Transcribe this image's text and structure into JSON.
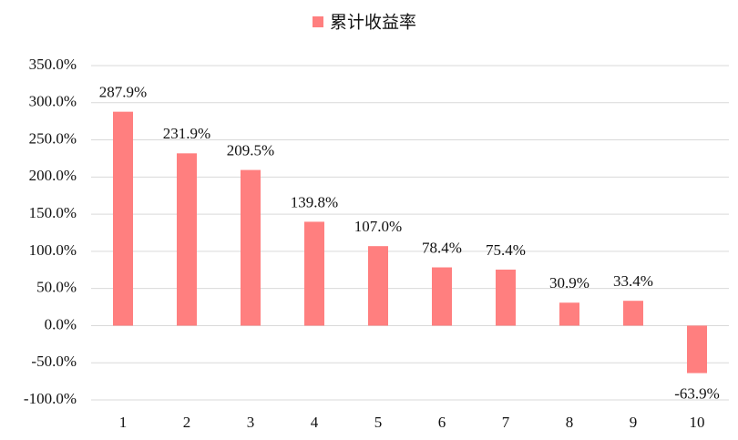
{
  "chart_data": {
    "type": "bar",
    "categories": [
      "1",
      "2",
      "3",
      "4",
      "5",
      "6",
      "7",
      "8",
      "9",
      "10"
    ],
    "series": [
      {
        "name": "累计收益率",
        "color": "#ff7f7f",
        "values": [
          287.9,
          231.9,
          209.5,
          139.8,
          107.0,
          78.4,
          75.4,
          30.9,
          33.4,
          -63.9
        ],
        "value_labels": [
          "287.9%",
          "231.9%",
          "209.5%",
          "139.8%",
          "107.0%",
          "78.4%",
          "75.4%",
          "30.9%",
          "33.4%",
          "-63.9%"
        ]
      }
    ],
    "ylim": [
      -100,
      350
    ],
    "yticks": [
      {
        "value": -100,
        "label": "-100.0%"
      },
      {
        "value": -50,
        "label": "-50.0%"
      },
      {
        "value": 0,
        "label": "0.0%"
      },
      {
        "value": 50,
        "label": "50.0%"
      },
      {
        "value": 100,
        "label": "100.0%"
      },
      {
        "value": 150,
        "label": "150.0%"
      },
      {
        "value": 200,
        "label": "200.0%"
      },
      {
        "value": 250,
        "label": "250.0%"
      },
      {
        "value": 300,
        "label": "300.0%"
      },
      {
        "value": 350,
        "label": "350.0%"
      }
    ],
    "grid": true,
    "legend": "top"
  }
}
